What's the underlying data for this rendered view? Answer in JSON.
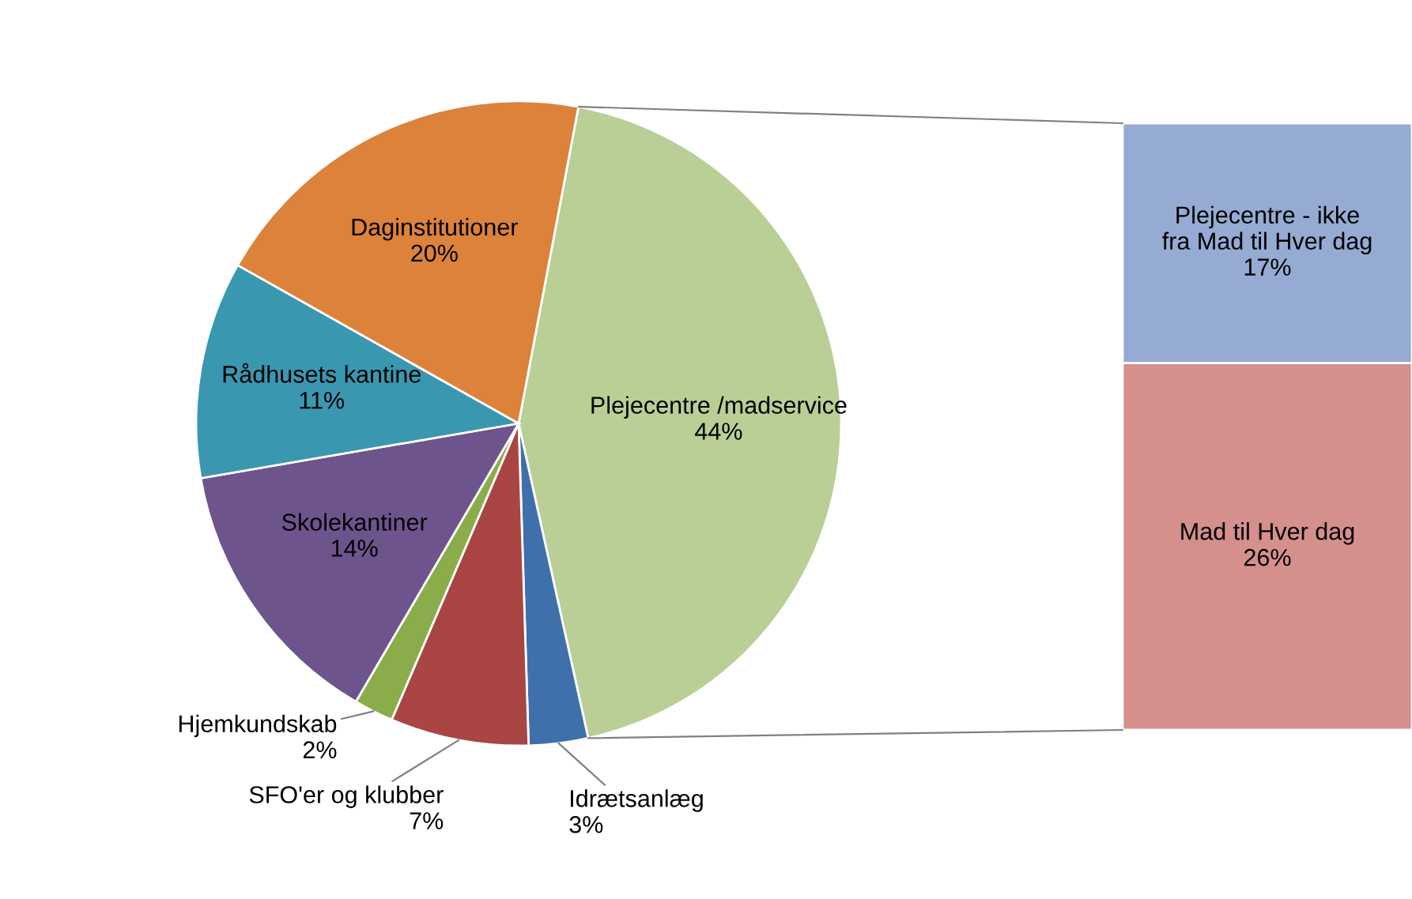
{
  "chart_data": [
    {
      "type": "pie",
      "categories": [
        "Plejecentre /madservice",
        "Idrætsanlæg",
        "SFO'er og klubber",
        "Hjemkundskab",
        "Skolekantiner",
        "Rådhusets kantine",
        "Daginstitutioner"
      ],
      "values": [
        44,
        3,
        7,
        2,
        14,
        11,
        20
      ],
      "value_labels": [
        "44%",
        "3%",
        "7%",
        "2%",
        "14%",
        "11%",
        "20%"
      ],
      "colors": [
        "#b9cf95",
        "#4070ac",
        "#a94543",
        "#8aac4a",
        "#6e548d",
        "#3a97b0",
        "#dc823b"
      ]
    },
    {
      "type": "bar",
      "stacked": true,
      "categories": [
        null
      ],
      "series": [
        {
          "name": "Mad til Hver dag",
          "color": "#d58f8d",
          "values": [
            26
          ],
          "value_labels": [
            "26%"
          ]
        },
        {
          "name": "Plejecentre - ikke fra Mad til Hver dag",
          "color": "#95abd3",
          "values": [
            17
          ],
          "value_labels": [
            "17%"
          ]
        }
      ]
    }
  ]
}
